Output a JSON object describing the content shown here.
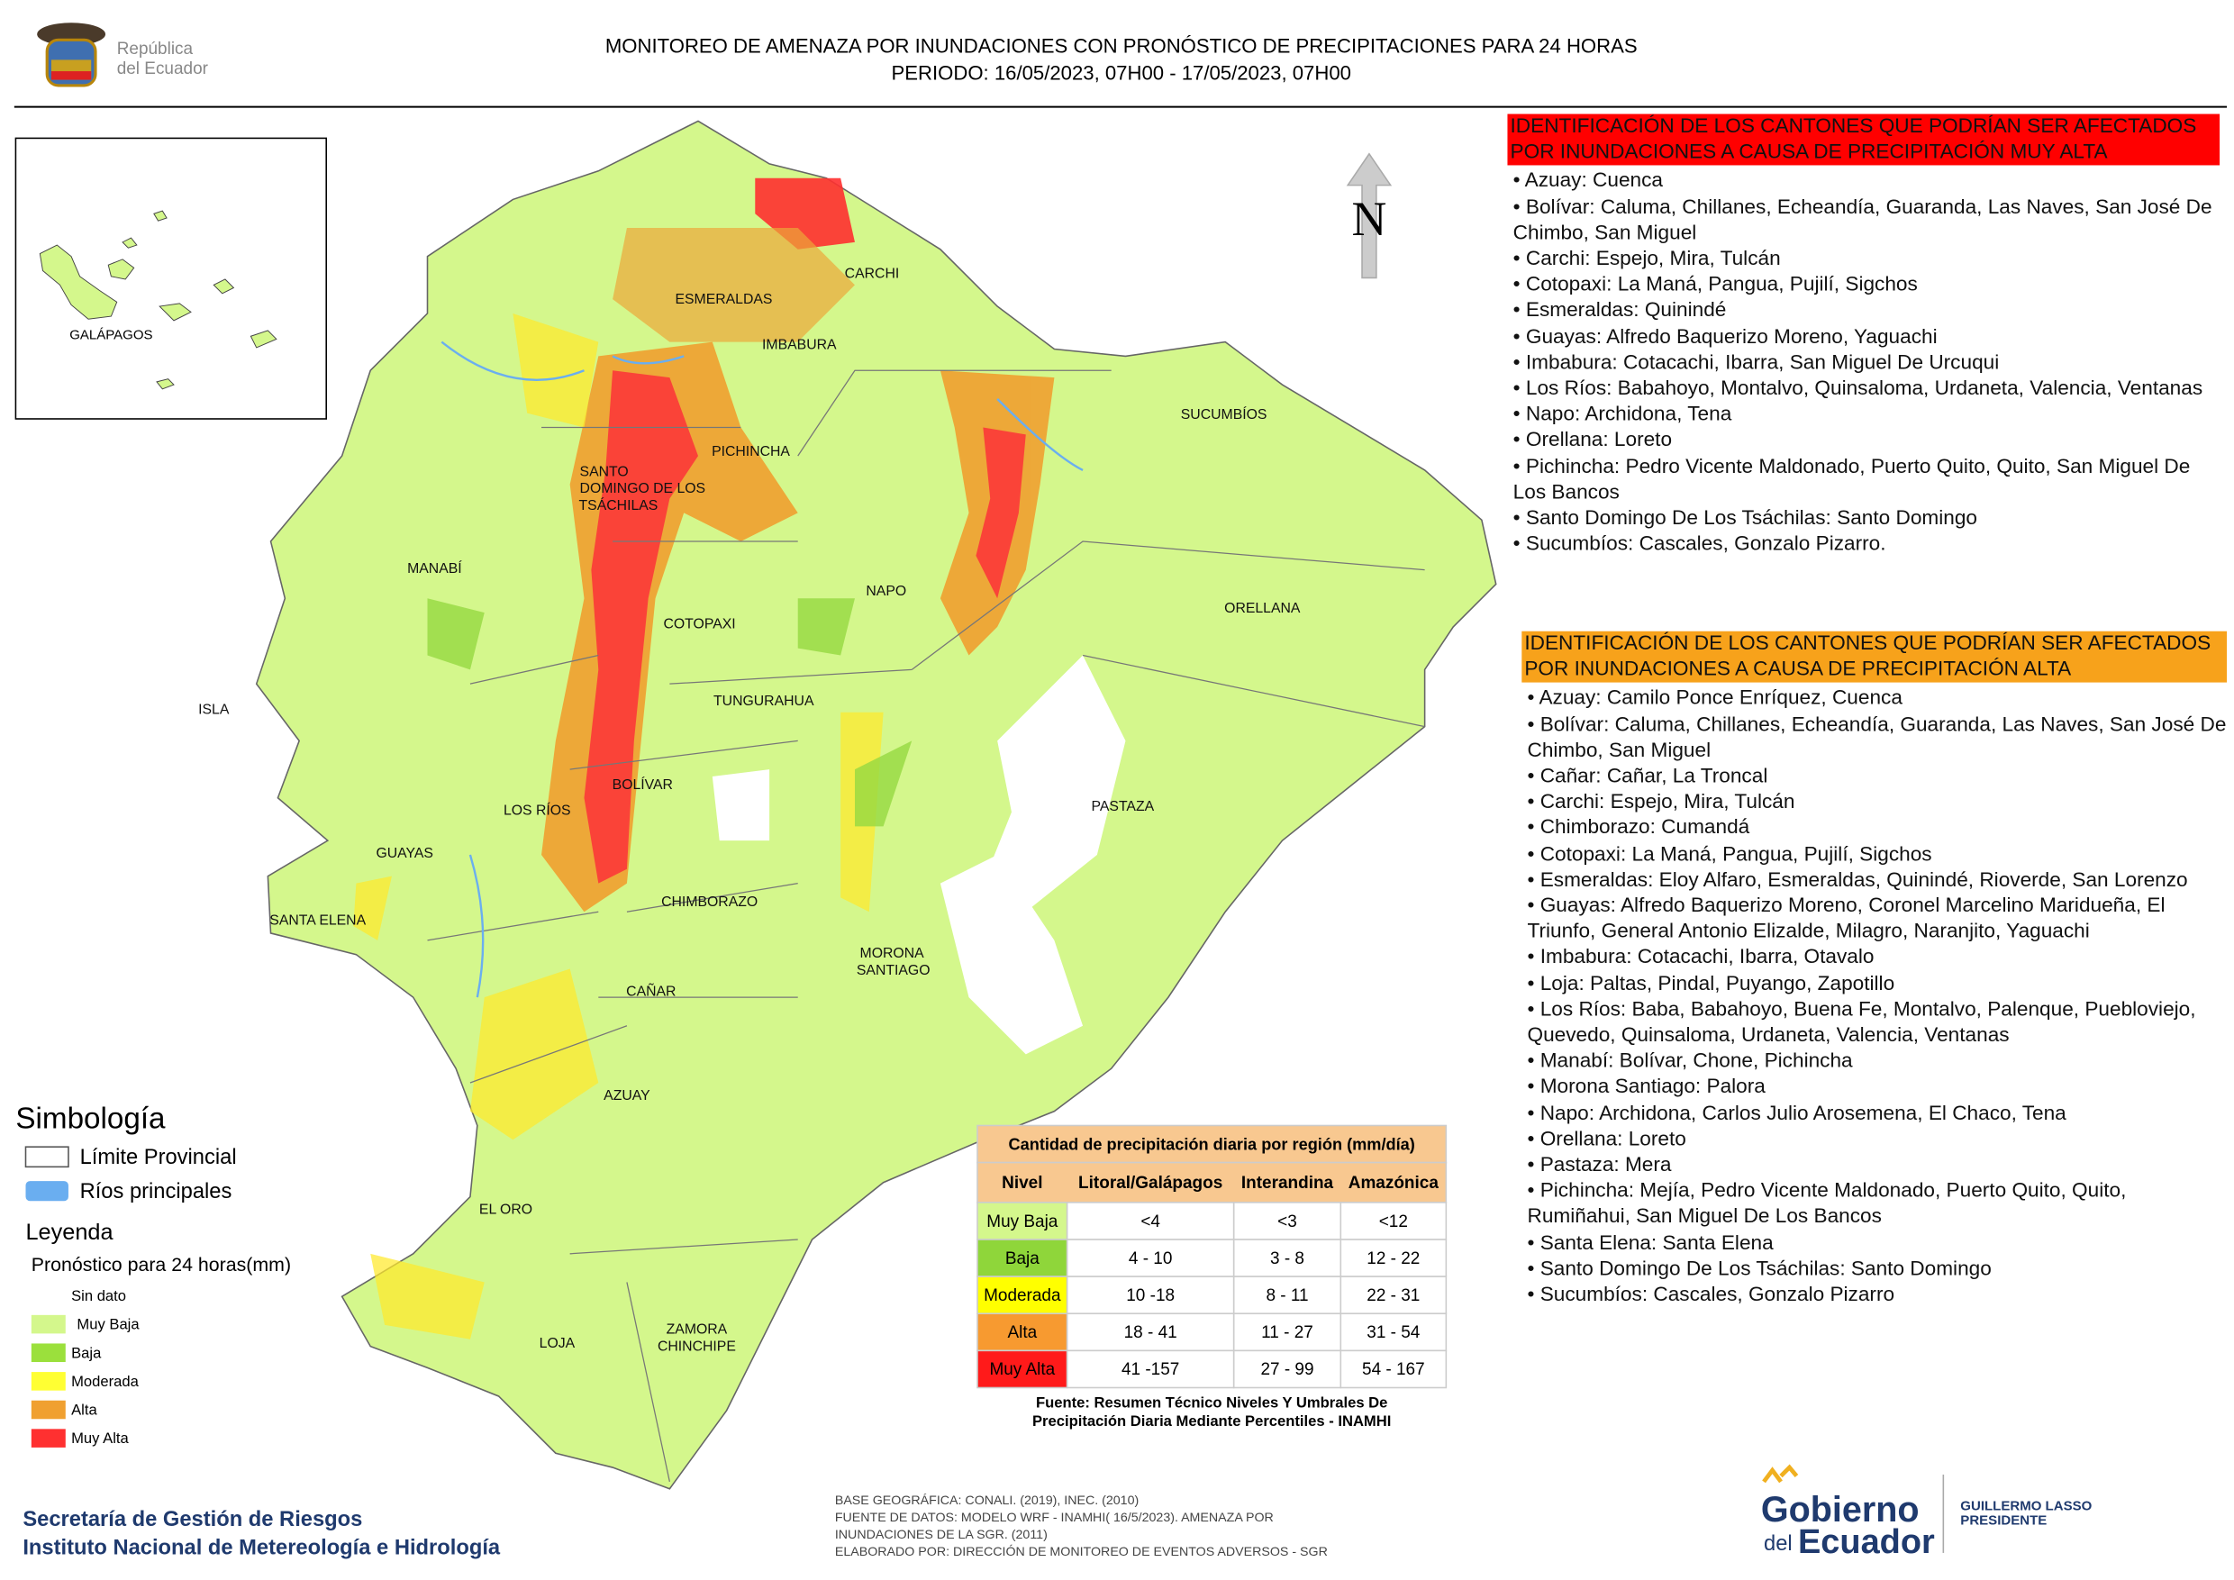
{
  "header": {
    "logo": [
      "República",
      "del Ecuador"
    ],
    "title": [
      "MONITOREO DE AMENAZA POR INUNDACIONES  CON PRONÓSTICO DE  PRECIPITACIONES PARA 24 HORAS",
      "PERIODO: 16/05/2023, 07H00 - 17/05/2023, 07H00"
    ]
  },
  "map": {
    "north": "N",
    "inset": "GALÁPAGOS",
    "provinces": [
      "CARCHI",
      "ESMERALDAS",
      "IMBABURA",
      "SUCUMBÍOS",
      "PICHINCHA",
      "SANTO",
      "DOMINGO DE LOS",
      "TSÁCHILAS",
      "MANABÍ",
      "NAPO",
      "ORELLANA",
      "COTOPAXI",
      "ISLA",
      "TUNGURAHUA",
      "BOLÍVAR",
      "LOS RÍOS",
      "PASTAZA",
      "GUAYAS",
      "SANTA ELENA",
      "CHIMBORAZO",
      "MORONA",
      "SANTIAGO",
      "CAÑAR",
      "AZUAY",
      "EL ORO",
      "LOJA",
      "ZAMORA",
      "CHINCHIPE"
    ]
  },
  "legend": {
    "simbologia": "Simbología",
    "symbols": [
      "Límite Provincial",
      "Ríos principales"
    ],
    "leyenda": "Leyenda",
    "subtitle": "Pronóstico para 24 horas(mm)",
    "items": [
      "Sin dato",
      "Muy Baja",
      "Baja",
      "Moderada",
      "Alta",
      "Muy Alta"
    ]
  },
  "table": {
    "title": "Cantidad de precipitación diaria por región (mm/día)",
    "header": [
      "Nivel",
      "Litoral/Galápagos",
      "Interandina",
      "Amazónica"
    ],
    "rows": [
      [
        "Muy Baja",
        "<4",
        "<3",
        "<12"
      ],
      [
        "Baja",
        "4 - 10",
        "3 - 8",
        "12 - 22"
      ],
      [
        "Moderada",
        "10 -18",
        "8 - 11",
        "22 - 31"
      ],
      [
        "Alta",
        "18 - 41",
        "11 - 27",
        "31 - 54"
      ],
      [
        "Muy Alta",
        "41 -157",
        "27 - 99",
        "54 - 167"
      ]
    ],
    "source": [
      "Fuente: Resumen Técnico Niveles Y Umbrales De",
      "Precipitación Diaria Mediante Percentiles - INAMHI"
    ]
  },
  "lists": [
    {
      "heading": "IDENTIFICACIÓN DE LOS CANTONES QUE PODRÍAN SER AFECTADOS POR INUNDACIONES  A CAUSA DE PRECIPITACIÓN MUY ALTA",
      "items": [
        "• Azuay: Cuenca",
        "• Bolívar: Caluma, Chillanes, Echeandía, Guaranda, Las Naves, San José De Chimbo, San Miguel",
        "• Carchi: Espejo, Mira, Tulcán",
        "• Cotopaxi: La Maná, Pangua, Pujilí, Sigchos",
        "• Esmeraldas: Quinindé",
        "• Guayas: Alfredo Baquerizo Moreno, Yaguachi",
        "• Imbabura: Cotacachi, Ibarra, San Miguel De Urcuqui",
        "• Los Ríos: Babahoyo, Montalvo, Quinsaloma, Urdaneta, Valencia, Ventanas",
        "• Napo: Archidona, Tena",
        "• Orellana: Loreto",
        "• Pichincha: Pedro Vicente Maldonado, Puerto Quito, Quito, San Miguel De Los Bancos",
        "• Santo Domingo De Los Tsáchilas: Santo Domingo",
        "• Sucumbíos: Cascales, Gonzalo Pizarro."
      ]
    },
    {
      "heading": "IDENTIFICACIÓN DE LOS CANTONES QUE  PODRÍAN SER AFECTADOS POR INUNDACIONES  A CAUSA DE PRECIPITACIÓN ALTA",
      "items": [
        "• Azuay: Camilo Ponce Enríquez, Cuenca",
        "• Bolívar: Caluma, Chillanes, Echeandía, Guaranda, Las Naves, San José De Chimbo, San Miguel",
        "• Cañar: Cañar, La Troncal",
        "• Carchi: Espejo, Mira, Tulcán",
        "• Chimborazo: Cumandá",
        "• Cotopaxi: La Maná, Pangua, Pujilí, Sigchos",
        "• Esmeraldas: Eloy Alfaro, Esmeraldas, Quinindé, Rioverde, San Lorenzo",
        "• Guayas: Alfredo Baquerizo Moreno, Coronel Marcelino Maridueña, El Triunfo, General Antonio Elizalde, Milagro, Naranjito, Yaguachi",
        "• Imbabura: Cotacachi, Ibarra, Otavalo",
        "• Loja: Paltas, Pindal, Puyango, Zapotillo",
        "• Los Ríos: Baba, Babahoyo, Buena Fe, Montalvo, Palenque, Puebloviejo, Quevedo, Quinsaloma, Urdaneta, Valencia, Ventanas",
        "• Manabí: Bolívar, Chone, Pichincha",
        "• Morona Santiago: Palora",
        "• Napo: Archidona, Carlos Julio Arosemena, El Chaco, Tena",
        "• Orellana: Loreto",
        "• Pastaza: Mera",
        "• Pichincha: Mejía, Pedro Vicente Maldonado, Puerto Quito, Quito, Rumiñahui, San Miguel De Los Bancos",
        "• Santa Elena: Santa Elena",
        "• Santo Domingo De Los Tsáchilas: Santo Domingo",
        "• Sucumbíos: Cascales, Gonzalo Pizarro"
      ]
    }
  ],
  "footer": {
    "institutions": [
      "Secretaría de Gestión de Riesgos",
      "Instituto Nacional de Metereología e Hidrología"
    ],
    "credits": [
      "BASE GEOGRÁFICA: CONALI. (2019), INEC. (2010)",
      "FUENTE DE DATOS: MODELO WRF - INAMHI( 16/5/2023).  AMENAZA POR",
      "INUNDACIONES DE LA SGR. (2011)",
      "ELABORADO POR: DIRECCIÓN DE MONITOREO DE EVENTOS ADVERSOS - SGR"
    ],
    "gov": [
      "Gobierno",
      "del",
      "Ecuador",
      "GUILLERMO LASSO",
      "PRESIDENTE"
    ]
  }
}
